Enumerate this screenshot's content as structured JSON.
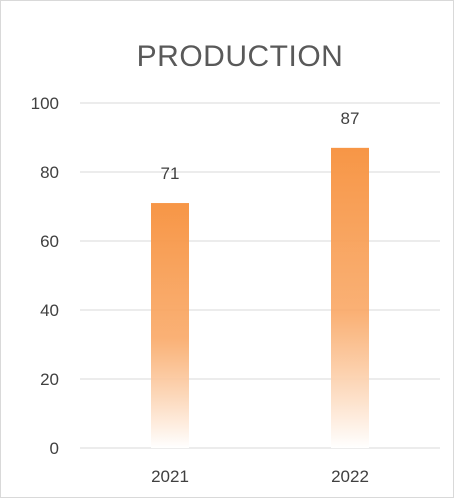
{
  "chart_data": {
    "type": "bar",
    "title": "PRODUCTION",
    "categories": [
      "2021",
      "2022"
    ],
    "values": [
      71,
      87
    ],
    "data_labels": [
      "71",
      "87"
    ],
    "ylim": [
      0,
      100
    ],
    "yticks": [
      0,
      20,
      40,
      60,
      80,
      100
    ],
    "xlabel": "",
    "ylabel": "",
    "grid": true,
    "legend": "none",
    "bar_color": "#f79646",
    "bar_fill": "gradient-fade-to-white-at-bottom"
  }
}
